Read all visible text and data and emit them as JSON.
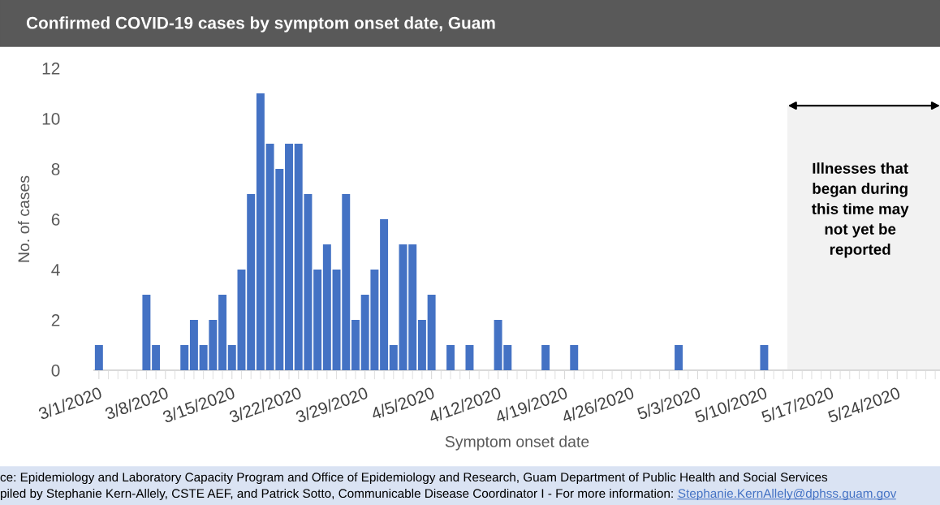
{
  "chart_data": {
    "type": "bar",
    "title": "Confirmed COVID-19 cases by symptom onset date, Guam",
    "xlabel": "Symptom onset date",
    "ylabel": "No. of cases",
    "x": [
      "2020-03-01",
      "2020-03-02",
      "2020-03-03",
      "2020-03-04",
      "2020-03-05",
      "2020-03-06",
      "2020-03-07",
      "2020-03-08",
      "2020-03-09",
      "2020-03-10",
      "2020-03-11",
      "2020-03-12",
      "2020-03-13",
      "2020-03-14",
      "2020-03-15",
      "2020-03-16",
      "2020-03-17",
      "2020-03-18",
      "2020-03-19",
      "2020-03-20",
      "2020-03-21",
      "2020-03-22",
      "2020-03-23",
      "2020-03-24",
      "2020-03-25",
      "2020-03-26",
      "2020-03-27",
      "2020-03-28",
      "2020-03-29",
      "2020-03-30",
      "2020-03-31",
      "2020-04-01",
      "2020-04-02",
      "2020-04-03",
      "2020-04-04",
      "2020-04-05",
      "2020-04-06",
      "2020-04-07",
      "2020-04-08",
      "2020-04-09",
      "2020-04-10",
      "2020-04-11",
      "2020-04-12",
      "2020-04-13",
      "2020-04-14",
      "2020-04-15",
      "2020-04-16",
      "2020-04-17",
      "2020-04-18",
      "2020-04-19",
      "2020-04-20",
      "2020-04-21",
      "2020-04-22",
      "2020-04-23",
      "2020-04-24",
      "2020-04-25",
      "2020-04-26",
      "2020-04-27",
      "2020-04-28",
      "2020-04-29",
      "2020-04-30",
      "2020-05-01",
      "2020-05-02",
      "2020-05-03",
      "2020-05-04",
      "2020-05-05",
      "2020-05-06",
      "2020-05-07",
      "2020-05-08",
      "2020-05-09",
      "2020-05-10"
    ],
    "values": [
      1,
      0,
      0,
      0,
      0,
      3,
      1,
      0,
      0,
      1,
      2,
      1,
      2,
      3,
      1,
      4,
      7,
      11,
      9,
      8,
      9,
      9,
      7,
      4,
      5,
      4,
      7,
      2,
      3,
      4,
      6,
      1,
      5,
      5,
      2,
      3,
      0,
      1,
      0,
      1,
      0,
      0,
      2,
      1,
      0,
      0,
      0,
      1,
      0,
      0,
      1,
      0,
      0,
      0,
      0,
      0,
      0,
      0,
      0,
      0,
      0,
      1,
      0,
      0,
      0,
      0,
      0,
      0,
      0,
      0,
      1
    ],
    "color": "#4472c4",
    "xlim": [
      "2020-02-29T12:00",
      "2020-05-28T12:00"
    ],
    "xticks": [
      {
        "value": "2020-03-01",
        "label": "3/1/2020"
      },
      {
        "value": "2020-03-08",
        "label": "3/8/2020"
      },
      {
        "value": "2020-03-15",
        "label": "3/15/2020"
      },
      {
        "value": "2020-03-22",
        "label": "3/22/2020"
      },
      {
        "value": "2020-03-29",
        "label": "3/29/2020"
      },
      {
        "value": "2020-04-05",
        "label": "4/5/2020"
      },
      {
        "value": "2020-04-12",
        "label": "4/12/2020"
      },
      {
        "value": "2020-04-19",
        "label": "4/19/2020"
      },
      {
        "value": "2020-04-26",
        "label": "4/26/2020"
      },
      {
        "value": "2020-05-03",
        "label": "5/3/2020"
      },
      {
        "value": "2020-05-10",
        "label": "5/10/2020"
      },
      {
        "value": "2020-05-17",
        "label": "5/17/2020"
      },
      {
        "value": "2020-05-24",
        "label": "5/24/2020"
      }
    ],
    "ylim": [
      0,
      12
    ],
    "yticks": [
      0,
      2,
      4,
      6,
      8,
      10,
      12
    ],
    "bands": [
      {
        "axis": "x",
        "from": "2020-05-12T12:00",
        "to": "2020-05-28T12:00",
        "label": "Illnesses that\nbegan during\nthis time may\nnot yet be\nreported",
        "color": "#f2f2f2"
      }
    ],
    "annotations": [
      "ce: Epidemiology and Laboratory Capacity Program and Office of Epidemiology and Research, Guam Department of Public Health and Social Services",
      "piled by Stephanie Kern-Allely, CSTE AEF, and Patrick Sotto, Communicable Disease Coordinator I - For more information: ",
      "Stephanie.KernAllely@dphss.guam.gov"
    ],
    "grid": false,
    "legend": false
  }
}
